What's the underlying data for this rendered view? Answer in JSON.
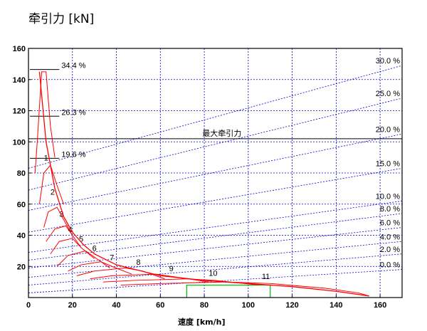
{
  "chart_data": {
    "type": "line",
    "title": "牵引力 [kN]",
    "xlabel": "速度 [km/h]",
    "xlim": [
      0,
      170
    ],
    "ylim": [
      0,
      160
    ],
    "x_ticks": [
      0,
      20,
      40,
      60,
      80,
      100,
      120,
      140,
      160
    ],
    "y_ticks": [
      20,
      40,
      60,
      80,
      100,
      120,
      140,
      160
    ],
    "grid": true,
    "max_traction": {
      "label": "最大牵引力",
      "value": 102
    },
    "grade_lines": [
      {
        "label": "30.0 %",
        "y_start": 83,
        "y_end": 149
      },
      {
        "label": "25.0 %",
        "y_start": 69,
        "y_end": 128
      },
      {
        "label": "20.0 %",
        "y_start": 56,
        "y_end": 105
      },
      {
        "label": "15.0 %",
        "y_start": 42,
        "y_end": 83
      },
      {
        "label": "10.0 %",
        "y_start": 29,
        "y_end": 62
      },
      {
        "label": "8.0 %",
        "y_start": 24,
        "y_end": 54
      },
      {
        "label": "6.0 %",
        "y_start": 19,
        "y_end": 45
      },
      {
        "label": "4.0 %",
        "y_start": 13,
        "y_end": 36
      },
      {
        "label": "2.0 %",
        "y_start": 8,
        "y_end": 28
      },
      {
        "label": "0.0 %",
        "y_start": 3,
        "y_end": 18
      }
    ],
    "gear_reserve_labels": [
      {
        "label": "34.4 %",
        "x": 15,
        "y": 146
      },
      {
        "label": "26.3 %",
        "x": 15,
        "y": 116
      },
      {
        "label": "19.6 %",
        "x": 15,
        "y": 89
      }
    ],
    "gears": [
      {
        "label": "1",
        "x": [
          3,
          4,
          6,
          8,
          10,
          12
        ],
        "y": [
          80,
          100,
          145,
          145,
          110,
          90
        ],
        "label_at": [
          8,
          88
        ]
      },
      {
        "label": "2",
        "x": [
          5,
          7,
          10,
          13,
          16
        ],
        "y": [
          60,
          80,
          85,
          72,
          60
        ],
        "label_at": [
          11,
          66
        ]
      },
      {
        "label": "3",
        "x": [
          7,
          9,
          13,
          16,
          20
        ],
        "y": [
          45,
          55,
          58,
          50,
          40
        ],
        "label_at": [
          15,
          52
        ]
      },
      {
        "label": "4",
        "x": [
          8,
          12,
          17,
          20,
          24
        ],
        "y": [
          36,
          44,
          46,
          40,
          32
        ],
        "label_at": [
          19,
          42
        ]
      },
      {
        "label": "5",
        "x": [
          10,
          14,
          20,
          24,
          30
        ],
        "y": [
          28,
          36,
          38,
          32,
          25
        ],
        "label_at": [
          24,
          36
        ]
      },
      {
        "label": "6",
        "x": [
          13,
          18,
          26,
          30,
          37
        ],
        "y": [
          20,
          27,
          30,
          26,
          19
        ],
        "label_at": [
          30,
          30
        ]
      },
      {
        "label": "7",
        "x": [
          18,
          24,
          33,
          38,
          47
        ],
        "y": [
          17,
          21,
          23,
          20,
          15
        ],
        "label_at": [
          38,
          24
        ]
      },
      {
        "label": "8",
        "x": [
          22,
          30,
          44,
          52,
          62
        ],
        "y": [
          14,
          17,
          19,
          17,
          12
        ],
        "label_at": [
          50,
          21
        ]
      },
      {
        "label": "9",
        "x": [
          28,
          38,
          58,
          68,
          82
        ],
        "y": [
          12,
          14,
          15,
          13,
          10
        ],
        "label_at": [
          65,
          17
        ]
      },
      {
        "label": "10",
        "x": [
          34,
          48,
          72,
          85,
          105
        ],
        "y": [
          10,
          11,
          12,
          11,
          8
        ],
        "label_at": [
          84,
          14
        ]
      },
      {
        "label": "11",
        "x": [
          42,
          60,
          90,
          110,
          135,
          150,
          155
        ],
        "y": [
          8,
          9,
          10,
          9,
          6,
          3,
          1
        ],
        "label_at": [
          108,
          12
        ]
      }
    ],
    "envelope": {
      "x": [
        5,
        8,
        12,
        16,
        20,
        25,
        30,
        40,
        60,
        80,
        100,
        120,
        140,
        155
      ],
      "y": [
        145,
        100,
        70,
        52,
        42,
        34,
        28,
        21,
        14,
        11,
        9,
        7,
        4,
        1
      ]
    },
    "green_band": {
      "x": [
        72,
        72,
        110,
        110
      ],
      "y": [
        0,
        8,
        8,
        0
      ]
    }
  }
}
